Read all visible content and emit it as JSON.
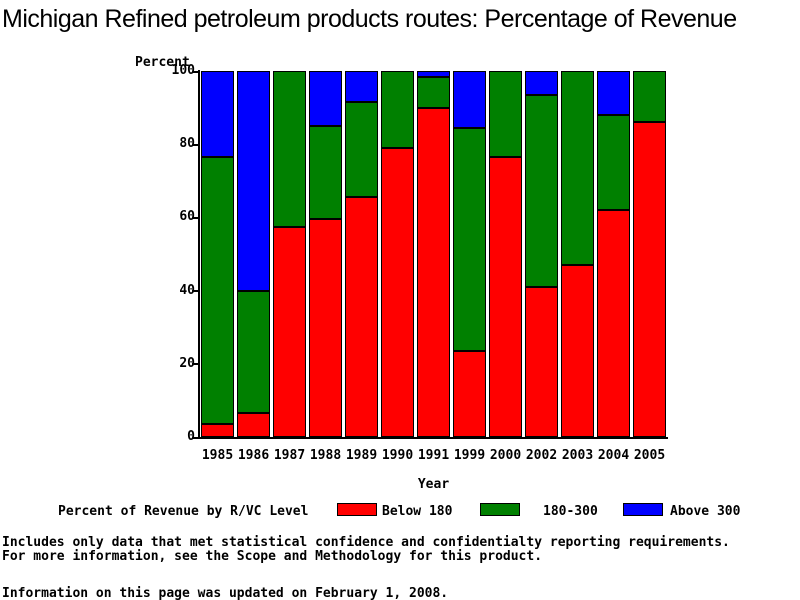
{
  "title": "Michigan Refined petroleum products routes: Percentage of Revenue",
  "axis": {
    "percent_label": "Percent",
    "year_label": "Year"
  },
  "chart_data": {
    "type": "bar",
    "stacked": true,
    "title": "Michigan Refined petroleum products routes: Percentage of Revenue",
    "xlabel": "Year",
    "ylabel": "Percent",
    "ylim": [
      0,
      100
    ],
    "y_ticks": [
      0,
      20,
      40,
      60,
      80,
      100
    ],
    "grid": false,
    "legend_position": "bottom",
    "categories": [
      "1985",
      "1986",
      "1987",
      "1988",
      "1989",
      "1990",
      "1991",
      "1999",
      "2000",
      "2002",
      "2003",
      "2004",
      "2005"
    ],
    "series": [
      {
        "name": "Below 180",
        "color": "#ff0000",
        "values": [
          3.5,
          6.5,
          57.5,
          59.5,
          65.5,
          79,
          90,
          23.5,
          76.5,
          41,
          47,
          62,
          86
        ]
      },
      {
        "name": "180-300",
        "color": "#008000",
        "values": [
          73,
          33.5,
          42.5,
          25.5,
          26,
          21,
          8.5,
          61,
          23.5,
          52.5,
          53,
          26,
          14
        ]
      },
      {
        "name": "Above 300",
        "color": "#0000ff",
        "values": [
          23.5,
          60,
          0,
          15,
          8.5,
          0,
          1.5,
          15.5,
          0,
          6.5,
          0,
          12,
          0
        ]
      }
    ]
  },
  "legend": {
    "title": "Percent of Revenue by R/VC Level",
    "items": [
      {
        "label": "Below 180",
        "color": "#ff0000"
      },
      {
        "label": "180-300",
        "color": "#008000"
      },
      {
        "label": "Above 300",
        "color": "#0000ff"
      }
    ]
  },
  "footer": {
    "line1": "Includes only data that met statistical confidence and confidentialty reporting requirements.",
    "line2": "For more information, see the Scope and Methodology for this product.",
    "line3": "Information on this page was updated on February 1, 2008."
  }
}
